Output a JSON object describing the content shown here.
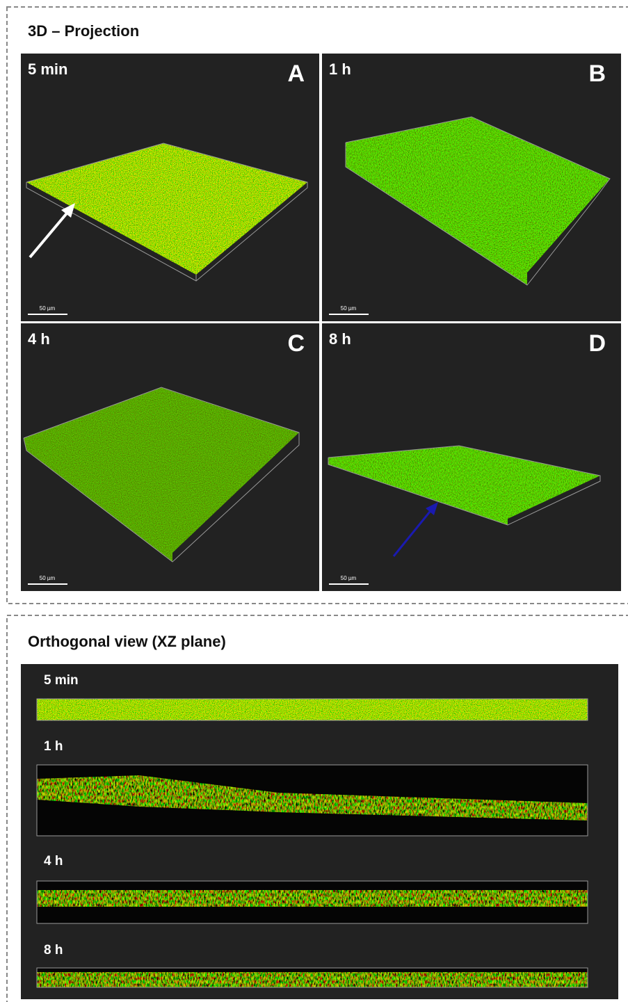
{
  "projection": {
    "title": "3D – Projection",
    "panels": [
      {
        "time": "5 min",
        "letter": "A",
        "scale": "50 µm"
      },
      {
        "time": "1 h",
        "letter": "B",
        "scale": "50 µm"
      },
      {
        "time": "4 h",
        "letter": "C",
        "scale": "50 µm"
      },
      {
        "time": "8 h",
        "letter": "D",
        "scale": "50 µm"
      }
    ]
  },
  "orthogonal": {
    "title": "Orthogonal view (XZ plane)",
    "strips": [
      {
        "time": "5 min"
      },
      {
        "time": "1 h"
      },
      {
        "time": "4 h"
      },
      {
        "time": "8 h"
      }
    ]
  }
}
